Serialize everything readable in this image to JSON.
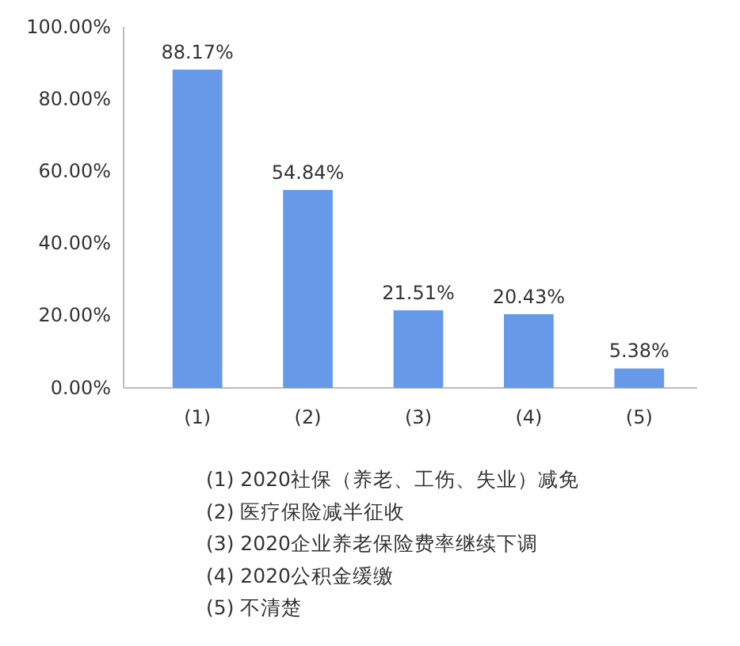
{
  "chart_data": {
    "type": "bar",
    "categories": [
      "(1)",
      "(2)",
      "(3)",
      "(4)",
      "(5)"
    ],
    "values": [
      88.17,
      54.84,
      21.51,
      20.43,
      5.38
    ],
    "value_labels": [
      "88.17%",
      "54.84%",
      "21.51%",
      "20.43%",
      "5.38%"
    ],
    "color": "#6699e8",
    "ylim": [
      0,
      100
    ],
    "yticks": [
      {
        "value": 0,
        "label": "0.00%"
      },
      {
        "value": 20,
        "label": "20.00%"
      },
      {
        "value": 40,
        "label": "40.00%"
      },
      {
        "value": 60,
        "label": "60.00%"
      },
      {
        "value": 80,
        "label": "80.00%"
      },
      {
        "value": 100,
        "label": "100.00%"
      }
    ],
    "grid": false,
    "annotations": [
      "(1) 2020社保（养老、工伤、失业）减免",
      "(2) 医疗保险减半征收",
      "(3) 2020企业养老保险费率继续下调",
      "(4) 2020公积金缓缴",
      "(5) 不清楚"
    ]
  }
}
